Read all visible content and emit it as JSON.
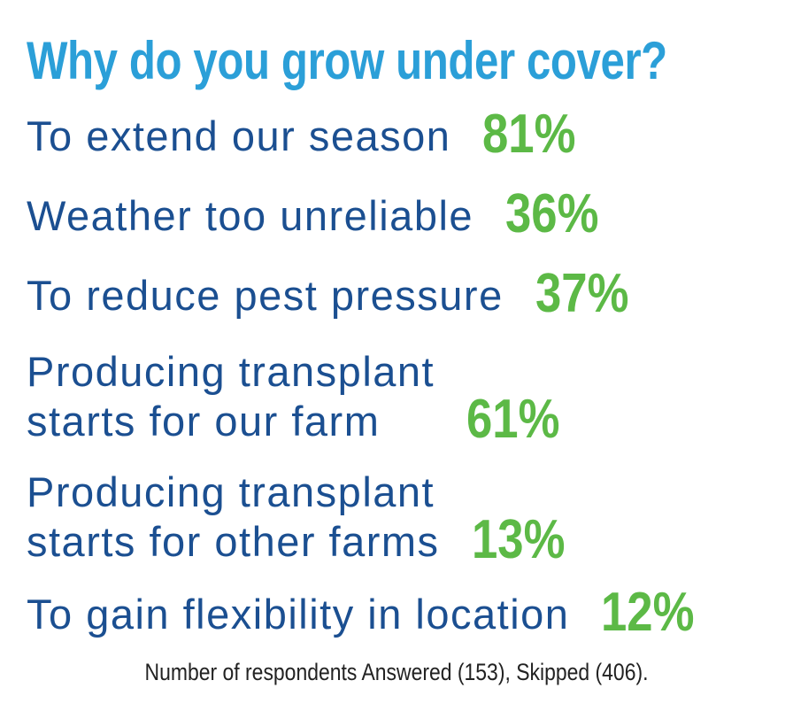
{
  "title": "Why do you grow under cover?",
  "items": [
    {
      "label": [
        "To extend our season"
      ],
      "value": "81%"
    },
    {
      "label": [
        "Weather too unreliable"
      ],
      "value": "36%"
    },
    {
      "label": [
        "To reduce pest pressure"
      ],
      "value": "37%"
    },
    {
      "label": [
        "Producing transplant",
        "starts for our farm"
      ],
      "value": "61%"
    },
    {
      "label": [
        "Producing transplant",
        "starts for other farms"
      ],
      "value": "13%"
    },
    {
      "label": [
        "To gain flexibility in location"
      ],
      "value": "12%"
    }
  ],
  "footnote": "Number of respondents Answered (153), Skipped (406)."
}
